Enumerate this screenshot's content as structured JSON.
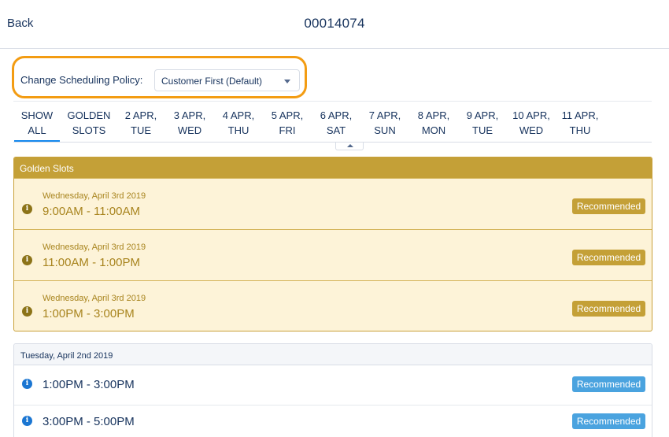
{
  "header": {
    "back_label": "Back",
    "title": "00014074"
  },
  "policy": {
    "label": "Change Scheduling Policy:",
    "selected": "Customer First (Default)"
  },
  "tabs": [
    {
      "line1": "SHOW",
      "line2": "ALL",
      "active": true
    },
    {
      "line1": "GOLDEN",
      "line2": "SLOTS"
    },
    {
      "line1": "2 APR,",
      "line2": "TUE"
    },
    {
      "line1": "3 APR,",
      "line2": "WED"
    },
    {
      "line1": "4 APR,",
      "line2": "THU"
    },
    {
      "line1": "5 APR,",
      "line2": "FRI"
    },
    {
      "line1": "6 APR,",
      "line2": "SAT"
    },
    {
      "line1": "7 APR,",
      "line2": "SUN"
    },
    {
      "line1": "8 APR,",
      "line2": "MON"
    },
    {
      "line1": "9 APR,",
      "line2": "TUE"
    },
    {
      "line1": "10 APR,",
      "line2": "WED"
    },
    {
      "line1": "11 APR,",
      "line2": "THU"
    }
  ],
  "golden": {
    "header": "Golden Slots",
    "slots": [
      {
        "date": "Wednesday, April 3rd 2019",
        "time": "9:00AM - 11:00AM",
        "badge": "Recommended"
      },
      {
        "date": "Wednesday, April 3rd 2019",
        "time": "11:00AM - 1:00PM",
        "badge": "Recommended"
      },
      {
        "date": "Wednesday, April 3rd 2019",
        "time": "1:00PM - 3:00PM",
        "badge": "Recommended"
      }
    ]
  },
  "tuesday": {
    "header": "Tuesday, April 2nd 2019",
    "slots": [
      {
        "time": "1:00PM - 3:00PM",
        "badge": "Recommended"
      },
      {
        "time": "3:00PM - 5:00PM",
        "badge": "Recommended"
      }
    ]
  },
  "colors": {
    "highlight_outline": "#f39c12",
    "golden_header": "#c4a037",
    "golden_bg": "#fdf3d8",
    "recommended_blue": "#4aa3df",
    "active_tab": "#1589ee"
  },
  "icons": {
    "info": "info-icon",
    "dropdown": "chevron-down-icon",
    "collapse": "chevron-up-icon"
  }
}
